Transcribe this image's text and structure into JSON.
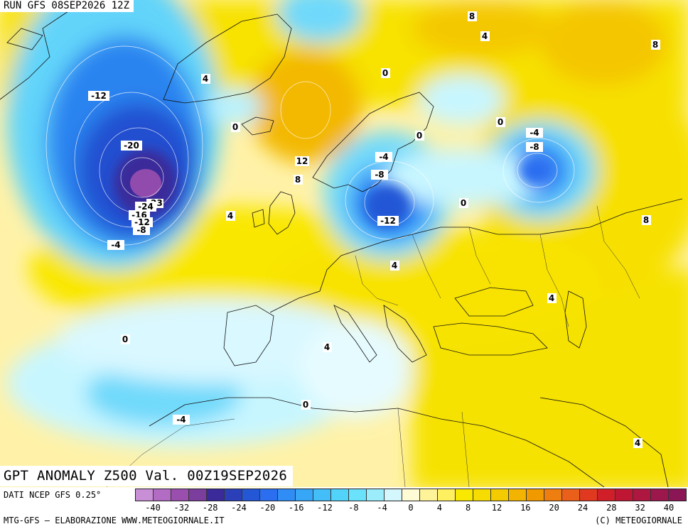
{
  "header": {
    "run_title": "RUN GFS 08SEP2026 12Z"
  },
  "map": {
    "variable_title": "GPT ANOMALY Z500 Val. 00Z19SEP2026",
    "contour_labels": [
      "-12",
      "-20",
      "-23",
      "-24",
      "-16",
      "-12",
      "-8",
      "-4",
      "4",
      "0",
      "12",
      "8",
      "4",
      "8",
      "4",
      "0",
      "-4",
      "-8",
      "-12",
      "0",
      "0",
      "-4",
      "-8",
      "8",
      "0",
      "8",
      "4",
      "4",
      "0",
      "-4",
      "0",
      "4",
      "4"
    ],
    "colors": {
      "strong_negative": "#9d4aa8",
      "negative": "#1f5fe0",
      "weak_negative": "#c8f4ff",
      "weak_positive": "#fff6b0",
      "positive": "#f7e100",
      "strong_positive": "#f3b200"
    }
  },
  "footer": {
    "data_source": "DATI NCEP GFS 0.25°",
    "credits_left": "MTG-GFS — ELABORAZIONE WWW.METEOGIORNALE.IT",
    "credits_right": "(C) METEOGIORNALE"
  },
  "legend": {
    "colors": [
      "#c98fd6",
      "#b36cc4",
      "#9a4fae",
      "#7b3e9c",
      "#3a2a9a",
      "#2b3fb8",
      "#2457d6",
      "#2b6ef0",
      "#2f8df5",
      "#38a6f7",
      "#43bef8",
      "#52d3fa",
      "#6be2fb",
      "#9cedfc",
      "#d4f7fd",
      "#fffbd5",
      "#fff39a",
      "#fff060",
      "#f9e800",
      "#f6dc00",
      "#f4cb00",
      "#f2b400",
      "#f09a00",
      "#ee7e10",
      "#ea5f1a",
      "#e0391f",
      "#d01f28",
      "#bf1733",
      "#ad1740",
      "#9b174c",
      "#8a1656"
    ],
    "ticks": [
      "-40",
      "-32",
      "-28",
      "-24",
      "-20",
      "-16",
      "-12",
      "-8",
      "-4",
      "0",
      "4",
      "8",
      "12",
      "16",
      "20",
      "24",
      "28",
      "32",
      "40"
    ]
  }
}
